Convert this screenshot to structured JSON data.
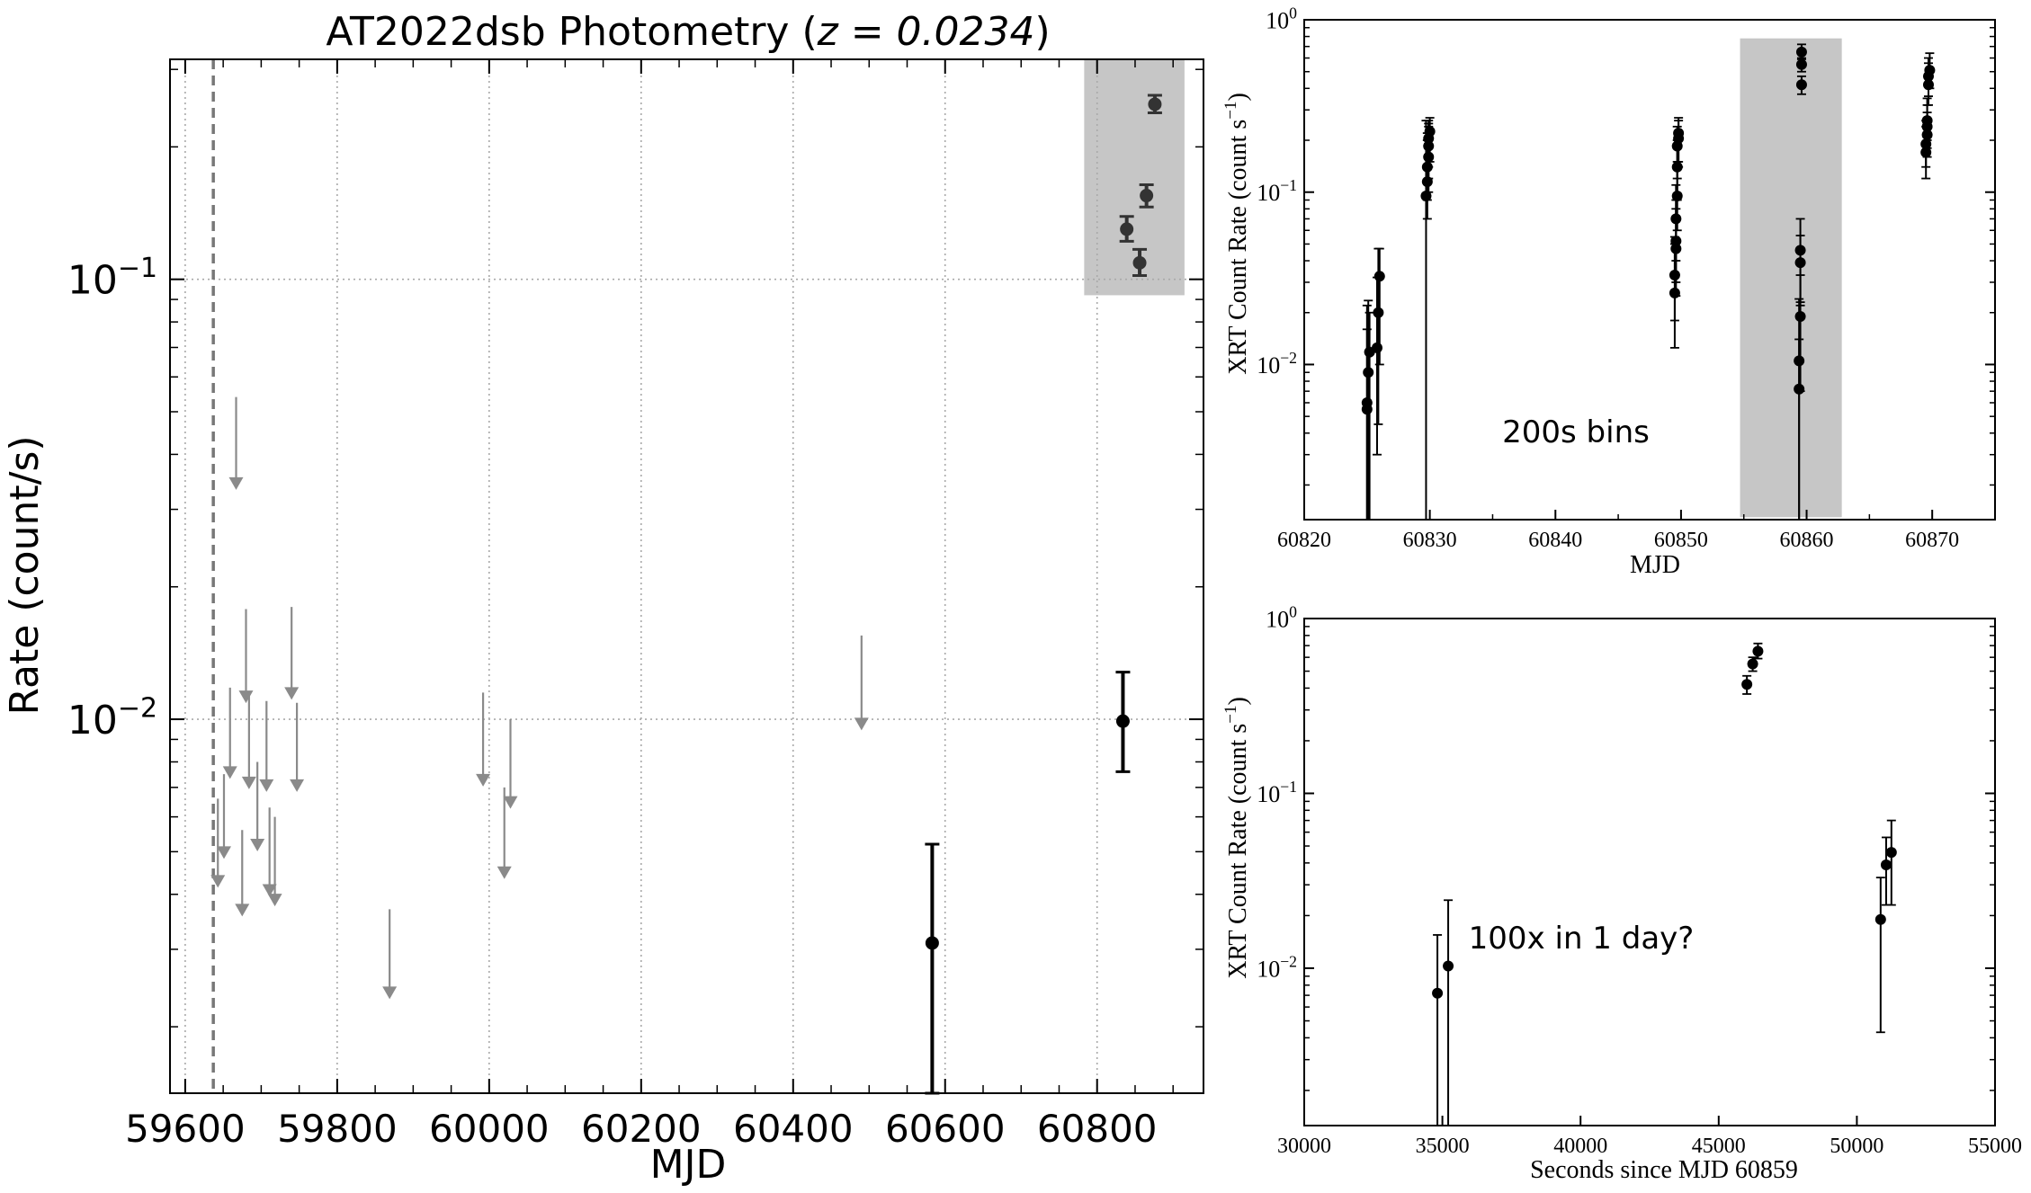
{
  "chart_data": [
    {
      "id": "main",
      "type": "scatter",
      "title": "AT2022dsb Photometry",
      "title_z": "z = 0.0234",
      "xlabel": "MJD",
      "ylabel": "Rate (count/s)",
      "xlim": [
        59580,
        60940
      ],
      "ylim_log10": [
        -2.85,
        -0.5
      ],
      "yscale": "log",
      "xticks": [
        59600,
        59800,
        60000,
        60200,
        60400,
        60600,
        60800
      ],
      "xtick_labels": [
        "59600",
        "59800",
        "60000",
        "60200",
        "60400",
        "60600",
        "60800"
      ],
      "yticks": [
        {
          "value": 0.1,
          "base": "10",
          "exp": "−1"
        },
        {
          "value": 0.01,
          "base": "10",
          "exp": "−2"
        }
      ],
      "grid": true,
      "vline_mjd": 59637,
      "highlight_box": {
        "x": [
          60783,
          60915
        ],
        "y": [
          0.092,
          0.33
        ]
      },
      "upper_limits": [
        {
          "x": 59667,
          "y0": 0.054,
          "y1": 0.0345
        },
        {
          "x": 59680,
          "y0": 0.0178,
          "y1": 0.0113
        },
        {
          "x": 59740,
          "y0": 0.018,
          "y1": 0.0115
        },
        {
          "x": 59659,
          "y0": 0.0118,
          "y1": 0.0076
        },
        {
          "x": 59684,
          "y0": 0.0114,
          "y1": 0.0072
        },
        {
          "x": 59707,
          "y0": 0.011,
          "y1": 0.0071
        },
        {
          "x": 59747,
          "y0": 0.0109,
          "y1": 0.0071
        },
        {
          "x": 59695,
          "y0": 0.008,
          "y1": 0.0052
        },
        {
          "x": 59651,
          "y0": 0.0075,
          "y1": 0.005
        },
        {
          "x": 59643,
          "y0": 0.0066,
          "y1": 0.0043
        },
        {
          "x": 59675,
          "y0": 0.0056,
          "y1": 0.0037
        },
        {
          "x": 59711,
          "y0": 0.0063,
          "y1": 0.0041
        },
        {
          "x": 59718,
          "y0": 0.006,
          "y1": 0.0039
        },
        {
          "x": 59869,
          "y0": 0.0037,
          "y1": 0.0024
        },
        {
          "x": 59992,
          "y0": 0.0115,
          "y1": 0.0073
        },
        {
          "x": 60020,
          "y0": 0.007,
          "y1": 0.0045
        },
        {
          "x": 60028,
          "y0": 0.01,
          "y1": 0.0065
        },
        {
          "x": 60490,
          "y0": 0.0155,
          "y1": 0.0098
        }
      ],
      "detections": [
        {
          "x": 60583,
          "y": 0.0031,
          "lo": 0.00135,
          "hi": 0.0052,
          "color": "#000000"
        },
        {
          "x": 60834,
          "y": 0.0099,
          "lo": 0.0076,
          "hi": 0.0128,
          "color": "#000000"
        },
        {
          "x": 60839,
          "y": 0.13,
          "lo": 0.122,
          "hi": 0.139,
          "color": "#333333"
        },
        {
          "x": 60856,
          "y": 0.109,
          "lo": 0.102,
          "hi": 0.117,
          "color": "#333333"
        },
        {
          "x": 60865,
          "y": 0.155,
          "lo": 0.146,
          "hi": 0.164,
          "color": "#333333"
        },
        {
          "x": 60876,
          "y": 0.25,
          "lo": 0.239,
          "hi": 0.262,
          "color": "#333333"
        }
      ]
    },
    {
      "id": "zoom",
      "type": "scatter",
      "xlabel": "MJD",
      "ylabel": "XRT Count Rate (count s",
      "ylabel_sup": "−1",
      "ylabel_close": ")",
      "annotation": "200s bins",
      "xlim": [
        60820,
        60875
      ],
      "ylim_log10": [
        -2.9,
        0
      ],
      "yscale": "log",
      "xticks": [
        60820,
        60830,
        60840,
        60850,
        60860,
        60870
      ],
      "xtick_labels": [
        "60820",
        "60830",
        "60840",
        "60850",
        "60860",
        "60870"
      ],
      "yticks": [
        {
          "value": 1,
          "base": "10",
          "exp": "0"
        },
        {
          "value": 0.1,
          "base": "10",
          "exp": "−1"
        },
        {
          "value": 0.01,
          "base": "10",
          "exp": "−2"
        }
      ],
      "highlight_box": {
        "x": [
          60854.7,
          60862.8
        ],
        "y": [
          0.0013,
          0.78
        ]
      },
      "points": [
        {
          "x": 60825.0,
          "y": 0.006,
          "lo": 0.0001,
          "hi": 0.022
        },
        {
          "x": 60825.0,
          "y": 0.0055,
          "lo": 0.0001,
          "hi": 0.016
        },
        {
          "x": 60825.1,
          "y": 0.009,
          "lo": 0.0001,
          "hi": 0.0235
        },
        {
          "x": 60825.2,
          "y": 0.0118,
          "lo": 0.0001,
          "hi": 0.02
        },
        {
          "x": 60825.8,
          "y": 0.0125,
          "lo": 0.003,
          "hi": 0.032
        },
        {
          "x": 60825.9,
          "y": 0.02,
          "lo": 0.0045,
          "hi": 0.047
        },
        {
          "x": 60826.0,
          "y": 0.0325,
          "lo": 0.01,
          "hi": 0.047
        },
        {
          "x": 60829.7,
          "y": 0.095,
          "lo": 0.0001,
          "hi": 0.26
        },
        {
          "x": 60829.8,
          "y": 0.115,
          "lo": 0.07,
          "hi": 0.2
        },
        {
          "x": 60829.8,
          "y": 0.14,
          "lo": 0.09,
          "hi": 0.22
        },
        {
          "x": 60829.9,
          "y": 0.16,
          "lo": 0.1,
          "hi": 0.24
        },
        {
          "x": 60829.9,
          "y": 0.185,
          "lo": 0.12,
          "hi": 0.25
        },
        {
          "x": 60829.9,
          "y": 0.205,
          "lo": 0.14,
          "hi": 0.26
        },
        {
          "x": 60830.0,
          "y": 0.225,
          "lo": 0.15,
          "hi": 0.27
        },
        {
          "x": 60849.5,
          "y": 0.026,
          "lo": 0.0125,
          "hi": 0.05
        },
        {
          "x": 60849.5,
          "y": 0.033,
          "lo": 0.018,
          "hi": 0.055
        },
        {
          "x": 60849.6,
          "y": 0.047,
          "lo": 0.025,
          "hi": 0.08
        },
        {
          "x": 60849.6,
          "y": 0.052,
          "lo": 0.03,
          "hi": 0.09
        },
        {
          "x": 60849.6,
          "y": 0.07,
          "lo": 0.04,
          "hi": 0.11
        },
        {
          "x": 60849.7,
          "y": 0.095,
          "lo": 0.06,
          "hi": 0.15
        },
        {
          "x": 60849.7,
          "y": 0.14,
          "lo": 0.09,
          "hi": 0.2
        },
        {
          "x": 60849.7,
          "y": 0.185,
          "lo": 0.12,
          "hi": 0.24
        },
        {
          "x": 60849.8,
          "y": 0.205,
          "lo": 0.14,
          "hi": 0.26
        },
        {
          "x": 60849.8,
          "y": 0.22,
          "lo": 0.15,
          "hi": 0.27
        },
        {
          "x": 60859.4,
          "y": 0.0072,
          "lo": 0.0001,
          "hi": 0.014
        },
        {
          "x": 60859.4,
          "y": 0.0105,
          "lo": 0.0001,
          "hi": 0.024
        },
        {
          "x": 60859.5,
          "y": 0.019,
          "lo": 0.007,
          "hi": 0.033
        },
        {
          "x": 60859.5,
          "y": 0.039,
          "lo": 0.022,
          "hi": 0.056
        },
        {
          "x": 60859.5,
          "y": 0.046,
          "lo": 0.023,
          "hi": 0.07
        },
        {
          "x": 60859.6,
          "y": 0.42,
          "lo": 0.37,
          "hi": 0.47
        },
        {
          "x": 60859.6,
          "y": 0.55,
          "lo": 0.5,
          "hi": 0.6
        },
        {
          "x": 60859.6,
          "y": 0.65,
          "lo": 0.59,
          "hi": 0.72
        },
        {
          "x": 60869.5,
          "y": 0.17,
          "lo": 0.12,
          "hi": 0.24
        },
        {
          "x": 60869.5,
          "y": 0.19,
          "lo": 0.14,
          "hi": 0.26
        },
        {
          "x": 60869.6,
          "y": 0.215,
          "lo": 0.16,
          "hi": 0.29
        },
        {
          "x": 60869.6,
          "y": 0.24,
          "lo": 0.18,
          "hi": 0.32
        },
        {
          "x": 60869.6,
          "y": 0.26,
          "lo": 0.2,
          "hi": 0.35
        },
        {
          "x": 60869.7,
          "y": 0.42,
          "lo": 0.32,
          "hi": 0.56
        },
        {
          "x": 60869.7,
          "y": 0.47,
          "lo": 0.36,
          "hi": 0.6
        },
        {
          "x": 60869.8,
          "y": 0.51,
          "lo": 0.4,
          "hi": 0.64
        }
      ]
    },
    {
      "id": "day",
      "type": "scatter",
      "xlabel": "Seconds since MJD 60859",
      "ylabel": "XRT Count Rate (count s",
      "ylabel_sup": "−1",
      "ylabel_close": ")",
      "annotation": "100x in 1 day?",
      "xlim": [
        30000,
        55000
      ],
      "ylim_log10": [
        -2.9,
        0
      ],
      "yscale": "log",
      "xticks": [
        30000,
        35000,
        40000,
        45000,
        50000,
        55000
      ],
      "xtick_labels": [
        "30000",
        "35000",
        "40000",
        "45000",
        "50000",
        "55000"
      ],
      "yticks": [
        {
          "value": 1,
          "base": "10",
          "exp": "0"
        },
        {
          "value": 0.1,
          "base": "10",
          "exp": "−1"
        },
        {
          "value": 0.01,
          "base": "10",
          "exp": "−2"
        }
      ],
      "points": [
        {
          "x": 34820,
          "y": 0.0072,
          "lo": 0.0001,
          "hi": 0.0155
        },
        {
          "x": 35210,
          "y": 0.0103,
          "lo": 0.0001,
          "hi": 0.0245
        },
        {
          "x": 46020,
          "y": 0.42,
          "lo": 0.37,
          "hi": 0.47
        },
        {
          "x": 46230,
          "y": 0.55,
          "lo": 0.5,
          "hi": 0.6
        },
        {
          "x": 46420,
          "y": 0.65,
          "lo": 0.59,
          "hi": 0.72
        },
        {
          "x": 50860,
          "y": 0.019,
          "lo": 0.0043,
          "hi": 0.033
        },
        {
          "x": 51060,
          "y": 0.039,
          "lo": 0.023,
          "hi": 0.056
        },
        {
          "x": 51250,
          "y": 0.046,
          "lo": 0.023,
          "hi": 0.07
        }
      ]
    }
  ]
}
